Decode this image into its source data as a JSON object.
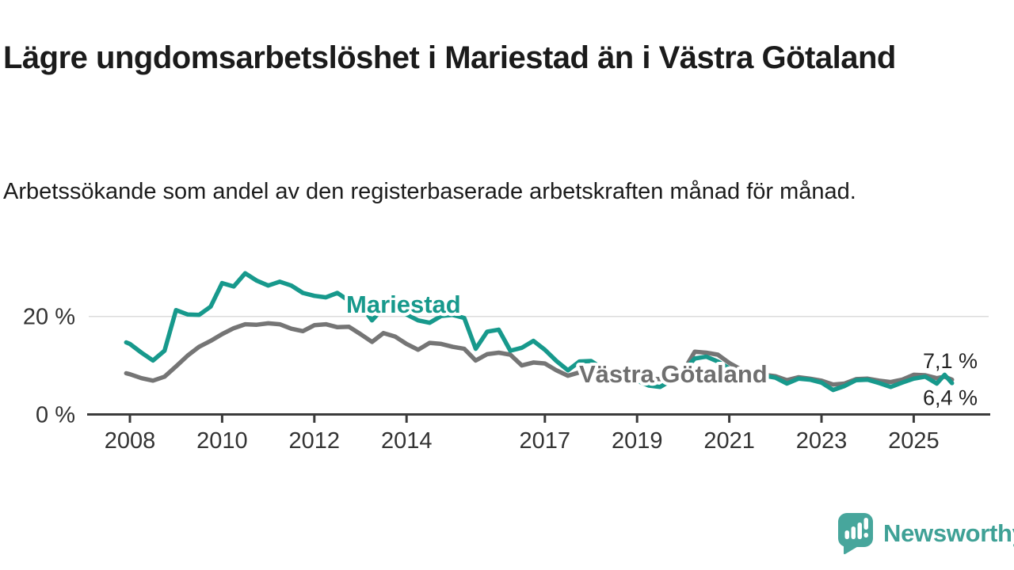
{
  "header": {
    "title": "Lägre ungdomsarbetslöshet i Mariestad än i Västra Götaland",
    "subtitle": "Arbetssökande som andel av den registerbaserade arbetskraften månad för månad."
  },
  "footer": {
    "brand": "Newsworthy"
  },
  "colors": {
    "mariestad": "#17998c",
    "vastra_gotaland": "#757575",
    "gridline": "#dbdbdb",
    "axis": "#3b3b3b",
    "text": "#1c1c1c",
    "logo": "#47a69c"
  },
  "chart_data": {
    "type": "line",
    "title": "Lägre ungdomsarbetslöshet i Mariestad än i Västra Götaland",
    "subtitle": "Arbetssökande som andel av den registerbaserade arbetskraften månad för månad.",
    "unit": "%",
    "grid": "horizontal-20-only",
    "legend_position": "inline-labels-on-lines",
    "xlim": [
      2007.1,
      2026.4
    ],
    "ylim": [
      0,
      30
    ],
    "x_axis": {
      "ticks": [
        {
          "year": 2008,
          "label": "2008"
        },
        {
          "year": 2010,
          "label": "2010"
        },
        {
          "year": 2012,
          "label": "2012"
        },
        {
          "year": 2014,
          "label": "2014"
        },
        {
          "year": 2017,
          "label": "2017"
        },
        {
          "year": 2019,
          "label": "2019"
        },
        {
          "year": 2021,
          "label": "2021"
        },
        {
          "year": 2023,
          "label": "2023"
        },
        {
          "year": 2025,
          "label": "2025"
        }
      ]
    },
    "y_axis": {
      "ticks": [
        {
          "value": 0,
          "label": "0 %"
        },
        {
          "value": 20,
          "label": "20 %"
        }
      ]
    },
    "x": [
      2007.92,
      2008,
      2008.25,
      2008.5,
      2008.75,
      2009,
      2009.25,
      2009.5,
      2009.75,
      2010,
      2010.25,
      2010.5,
      2010.75,
      2011,
      2011.25,
      2011.5,
      2011.75,
      2012,
      2012.25,
      2012.5,
      2012.75,
      2013,
      2013.25,
      2013.5,
      2013.75,
      2014,
      2014.25,
      2014.5,
      2014.75,
      2015,
      2015.25,
      2015.5,
      2015.75,
      2016,
      2016.25,
      2016.5,
      2016.75,
      2017,
      2017.25,
      2017.5,
      2017.75,
      2018,
      2018.25,
      2018.5,
      2018.75,
      2019,
      2019.25,
      2019.5,
      2019.75,
      2020,
      2020.25,
      2020.5,
      2020.75,
      2021,
      2021.25,
      2021.5,
      2021.75,
      2022,
      2022.25,
      2022.5,
      2022.75,
      2023,
      2023.25,
      2023.5,
      2023.75,
      2024,
      2024.25,
      2024.5,
      2024.75,
      2025,
      2025.25,
      2025.5,
      2025.67,
      2025.83
    ],
    "series": [
      {
        "name": "Mariestad",
        "color": "#17998c",
        "end_label": "6,4 %",
        "values": [
          14.7,
          14.4,
          12.6,
          11.0,
          13.0,
          21.3,
          20.4,
          20.3,
          22.0,
          26.8,
          26.1,
          28.8,
          27.3,
          26.3,
          27.1,
          26.3,
          24.8,
          24.2,
          23.9,
          24.8,
          23.2,
          22.4,
          19.2,
          21.8,
          21.2,
          20.4,
          19.2,
          18.7,
          20.1,
          20.3,
          19.7,
          13.4,
          16.9,
          17.3,
          13.0,
          13.6,
          15.0,
          13.2,
          10.9,
          9.0,
          10.8,
          10.9,
          9.4,
          8.4,
          7.6,
          6.9,
          5.9,
          5.6,
          7.0,
          8.8,
          11.4,
          11.8,
          10.8,
          9.4,
          8.2,
          7.8,
          7.9,
          7.5,
          6.3,
          7.3,
          7.1,
          6.5,
          5.0,
          5.8,
          7.0,
          7.1,
          6.4,
          5.6,
          6.5,
          7.3,
          7.7,
          6.3,
          8.1,
          6.4
        ]
      },
      {
        "name": "Västra Götaland",
        "color": "#757575",
        "end_label": "7,1 %",
        "values": [
          8.4,
          8.2,
          7.4,
          6.9,
          7.7,
          9.8,
          12.0,
          13.8,
          15.0,
          16.4,
          17.6,
          18.4,
          18.3,
          18.6,
          18.4,
          17.5,
          17.0,
          18.2,
          18.4,
          17.8,
          17.9,
          16.4,
          14.8,
          16.6,
          15.9,
          14.4,
          13.2,
          14.6,
          14.4,
          13.8,
          13.4,
          11.0,
          12.3,
          12.6,
          12.2,
          10.0,
          10.6,
          10.4,
          9.0,
          7.9,
          8.6,
          8.6,
          8.3,
          8.0,
          7.8,
          7.6,
          7.3,
          7.2,
          7.7,
          8.8,
          12.8,
          12.6,
          12.2,
          10.5,
          9.2,
          8.4,
          8.1,
          7.8,
          7.0,
          7.6,
          7.3,
          6.9,
          6.1,
          6.3,
          7.2,
          7.3,
          6.9,
          6.6,
          7.1,
          8.1,
          8.0,
          7.4,
          7.7,
          7.1
        ]
      }
    ]
  }
}
